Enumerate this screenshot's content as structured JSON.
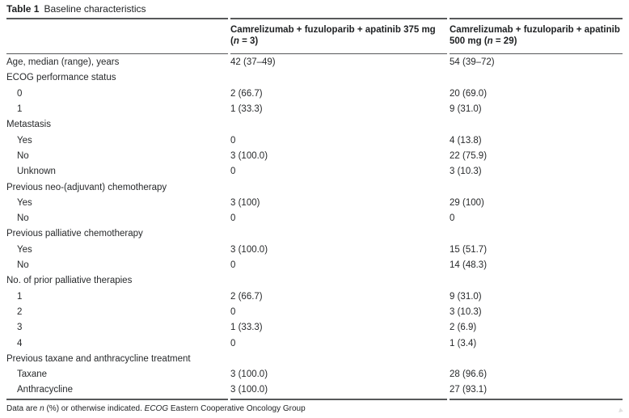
{
  "page": {
    "background": "#ffffff",
    "text_color": "#27292b",
    "rule_color": "#57585a"
  },
  "table": {
    "label": "Table 1",
    "title": "Baseline characteristics",
    "header": {
      "col2": {
        "line1": "Camrelizumab + fuzuloparib + apatinib 375 mg",
        "line2_pre": "(",
        "n": "n",
        "line2_post": " = 3)"
      },
      "col3": {
        "line1": "Camrelizumab + fuzuloparib + apatinib",
        "line2_pre": "500 mg (",
        "n": "n",
        "line2_post": " = 29)"
      }
    },
    "rows": [
      {
        "label": "Age, median (range), years",
        "indent": false,
        "v1": "42 (37–49)",
        "v2": "54 (39–72)"
      },
      {
        "label": "ECOG performance status",
        "indent": false,
        "v1": "",
        "v2": ""
      },
      {
        "label": "0",
        "indent": true,
        "v1": "2 (66.7)",
        "v2": "20 (69.0)"
      },
      {
        "label": "1",
        "indent": true,
        "v1": "1 (33.3)",
        "v2": "9 (31.0)"
      },
      {
        "label": "Metastasis",
        "indent": false,
        "v1": "",
        "v2": ""
      },
      {
        "label": "Yes",
        "indent": true,
        "v1": "0",
        "v2": "4 (13.8)"
      },
      {
        "label": "No",
        "indent": true,
        "v1": "3 (100.0)",
        "v2": "22 (75.9)"
      },
      {
        "label": "Unknown",
        "indent": true,
        "v1": "0",
        "v2": "3 (10.3)"
      },
      {
        "label": "Previous neo-(adjuvant) chemotherapy",
        "indent": false,
        "v1": "",
        "v2": ""
      },
      {
        "label": "Yes",
        "indent": true,
        "v1": "3 (100)",
        "v2": "29 (100)"
      },
      {
        "label": "No",
        "indent": true,
        "v1": "0",
        "v2": "0"
      },
      {
        "label": "Previous palliative chemotherapy",
        "indent": false,
        "v1": "",
        "v2": ""
      },
      {
        "label": "Yes",
        "indent": true,
        "v1": "3 (100.0)",
        "v2": "15 (51.7)"
      },
      {
        "label": "No",
        "indent": true,
        "v1": "0",
        "v2": "14 (48.3)"
      },
      {
        "label": "No. of prior palliative therapies",
        "indent": false,
        "v1": "",
        "v2": ""
      },
      {
        "label": "1",
        "indent": true,
        "v1": "2 (66.7)",
        "v2": "9 (31.0)"
      },
      {
        "label": "2",
        "indent": true,
        "v1": "0",
        "v2": "3 (10.3)"
      },
      {
        "label": "3",
        "indent": true,
        "v1": "1 (33.3)",
        "v2": "2 (6.9)"
      },
      {
        "label": "4",
        "indent": true,
        "v1": "0",
        "v2": "1 (3.4)"
      },
      {
        "label": "Previous taxane and anthracycline treatment",
        "indent": false,
        "v1": "",
        "v2": ""
      },
      {
        "label": "Taxane",
        "indent": true,
        "v1": "3 (100.0)",
        "v2": "28 (96.6)"
      },
      {
        "label": "Anthracycline",
        "indent": true,
        "v1": "3 (100.0)",
        "v2": "27 (93.1)"
      }
    ],
    "footnote": {
      "part1": "Data are ",
      "n": "n",
      "part2": " (%) or otherwise indicated. ",
      "ecog": "ECOG",
      "part3": " Eastern Cooperative Oncology Group"
    }
  }
}
